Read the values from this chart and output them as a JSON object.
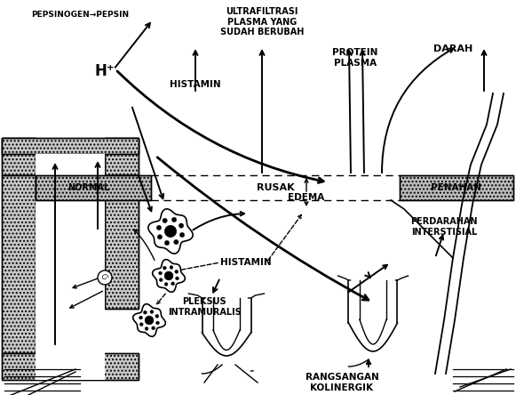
{
  "bg_color": "#ffffff",
  "labels": {
    "pepsinogen_pepsin": "PEPSINOGEN→PEPSIN",
    "ultrafiltrasi": "ULTRAFILTRASI\nPLASMA YANG\nSUDAH BERUBAH",
    "h_plus": "H⁺",
    "histamin_top": "HISTAMIN",
    "protein_plasma": "PROTEIN\nPLASMA",
    "darah": "DARAH",
    "normal": "NORMAL",
    "rusak": "RUSAK",
    "penahan": "PENAHAN",
    "edema": "EDEMA",
    "perdarahan": "PERDARAHAN\nINTERSTISIAL",
    "histamin_mid": "HISTAMIN",
    "pleksus": "PLEKSUS\nINTRAMURALIS",
    "rangsangan": "RANGSANGAN\nKOLINERGIK"
  }
}
